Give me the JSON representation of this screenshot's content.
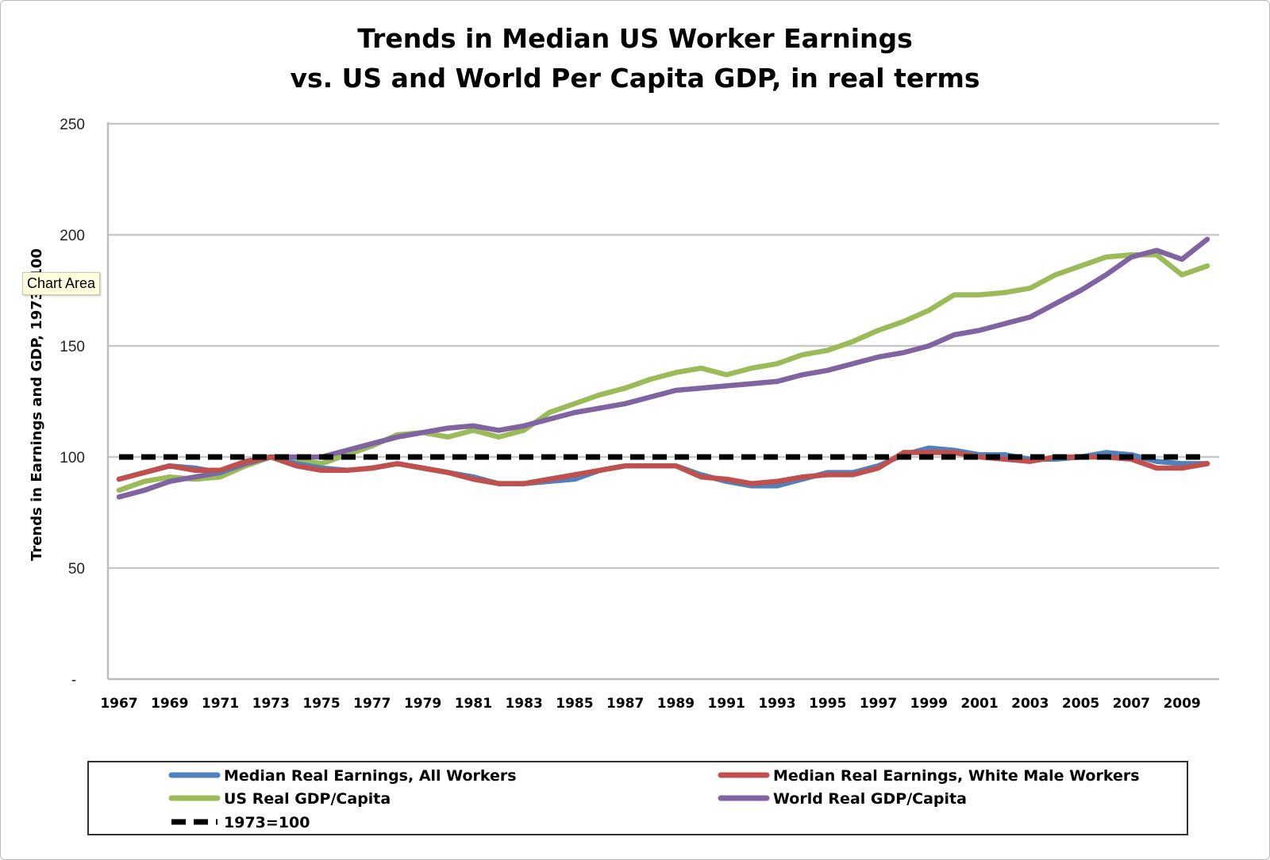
{
  "chart_data": {
    "type": "line",
    "title": [
      "Trends in Median US Worker Earnings",
      "vs. US and World Per Capita GDP, in real terms"
    ],
    "xlabel": "",
    "ylabel": "Trends in Earnings and GDP, 1973=100",
    "ylim": [
      0,
      250
    ],
    "yticks": [
      {
        "value": 0,
        "label": "-"
      },
      {
        "value": 50,
        "label": "50"
      },
      {
        "value": 100,
        "label": "100"
      },
      {
        "value": 150,
        "label": "150"
      },
      {
        "value": 200,
        "label": "200"
      },
      {
        "value": 250,
        "label": "250"
      }
    ],
    "grid": true,
    "legend_position": "bottom",
    "x": [
      1967,
      1968,
      1969,
      1970,
      1971,
      1972,
      1973,
      1974,
      1975,
      1976,
      1977,
      1978,
      1979,
      1980,
      1981,
      1982,
      1983,
      1984,
      1985,
      1986,
      1987,
      1988,
      1989,
      1990,
      1991,
      1992,
      1993,
      1994,
      1995,
      1996,
      1997,
      1998,
      1999,
      2000,
      2001,
      2002,
      2003,
      2004,
      2005,
      2006,
      2007,
      2008,
      2009,
      2010
    ],
    "xtick_labels": [
      "1967",
      "1969",
      "1971",
      "1973",
      "1975",
      "1977",
      "1979",
      "1981",
      "1983",
      "1985",
      "1987",
      "1989",
      "1991",
      "1993",
      "1995",
      "1997",
      "1999",
      "2001",
      "2003",
      "2005",
      "2007",
      "2009"
    ],
    "series": [
      {
        "name": "US Real GDP/Capita",
        "color": "#9bbb59",
        "dash": "solid",
        "values": [
          85,
          89,
          91,
          90,
          91,
          96,
          100,
          99,
          97,
          101,
          105,
          110,
          111,
          109,
          112,
          109,
          112,
          120,
          124,
          128,
          131,
          135,
          138,
          140,
          137,
          140,
          142,
          146,
          148,
          152,
          157,
          161,
          166,
          173,
          173,
          174,
          176,
          182,
          186,
          190,
          191,
          191,
          182,
          186
        ]
      },
      {
        "name": "World Real GDP/Capita",
        "color": "#8064a2",
        "dash": "solid",
        "values": [
          82,
          85,
          89,
          91,
          93,
          97,
          100,
          100,
          100,
          103,
          106,
          109,
          111,
          113,
          114,
          112,
          114,
          117,
          120,
          122,
          124,
          127,
          130,
          131,
          132,
          133,
          134,
          137,
          139,
          142,
          145,
          147,
          150,
          155,
          157,
          160,
          163,
          169,
          175,
          182,
          190,
          193,
          189,
          198
        ]
      },
      {
        "name": "Median Real Earnings, All Workers",
        "color": "#4f81bd",
        "dash": "solid",
        "values": [
          90,
          93,
          96,
          95,
          93,
          98,
          100,
          97,
          95,
          94,
          95,
          97,
          95,
          93,
          91,
          88,
          88,
          89,
          90,
          94,
          96,
          96,
          96,
          92,
          89,
          87,
          87,
          90,
          93,
          93,
          96,
          101,
          104,
          103,
          101,
          101,
          99,
          99,
          100,
          102,
          101,
          98,
          97,
          97
        ]
      },
      {
        "name": "Median Real Earnings, White Male Workers",
        "color": "#c0504d",
        "dash": "solid",
        "values": [
          90,
          93,
          96,
          94,
          94,
          98,
          100,
          96,
          94,
          94,
          95,
          97,
          95,
          93,
          90,
          88,
          88,
          90,
          92,
          94,
          96,
          96,
          96,
          91,
          90,
          88,
          89,
          91,
          92,
          92,
          95,
          102,
          102,
          102,
          100,
          99,
          98,
          100,
          100,
          100,
          99,
          95,
          95,
          97
        ]
      },
      {
        "name": "1973=100",
        "color": "#000000",
        "dash": "dashed",
        "values": [
          100,
          100,
          100,
          100,
          100,
          100,
          100,
          100,
          100,
          100,
          100,
          100,
          100,
          100,
          100,
          100,
          100,
          100,
          100,
          100,
          100,
          100,
          100,
          100,
          100,
          100,
          100,
          100,
          100,
          100,
          100,
          100,
          100,
          100,
          100,
          100,
          100,
          100,
          100,
          100,
          100,
          100,
          100,
          100
        ]
      }
    ],
    "legend": [
      {
        "name": "Median Real Earnings, All Workers",
        "color": "#4f81bd",
        "dash": "solid"
      },
      {
        "name": "Median Real Earnings, White Male Workers",
        "color": "#c0504d",
        "dash": "solid"
      },
      {
        "name": "US Real GDP/Capita",
        "color": "#9bbb59",
        "dash": "solid"
      },
      {
        "name": "World Real GDP/Capita",
        "color": "#8064a2",
        "dash": "solid"
      },
      {
        "name": "1973=100",
        "color": "#000000",
        "dash": "dashed"
      }
    ]
  },
  "tooltip": {
    "text": "Chart Area"
  }
}
